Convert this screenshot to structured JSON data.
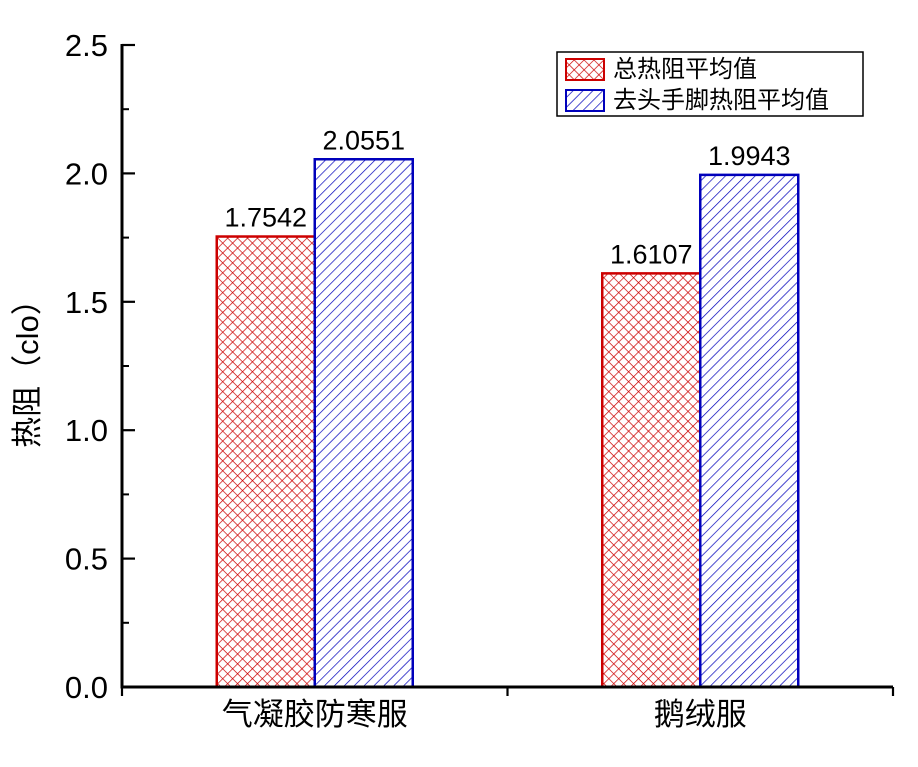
{
  "chart_data": {
    "type": "bar",
    "title": "",
    "xlabel": "",
    "ylabel": "热阻（clo）",
    "ylim": [
      0,
      2.5
    ],
    "yticks": [
      0,
      0.5,
      1,
      1.5,
      2,
      2.5
    ],
    "ytick_labels": [
      "0.0",
      "0.5",
      "1.0",
      "1.5",
      "2.0",
      "2.5"
    ],
    "yminor_step": 0.25,
    "grid": false,
    "background": "#ffffff",
    "axis_color": "#000000",
    "categories": [
      "气凝胶防寒服",
      "鹅绒服"
    ],
    "series": [
      {
        "name": "总热阻平均值",
        "pattern": "crosshatch",
        "color": "#cc0000",
        "values": [
          1.7542,
          1.6107
        ],
        "labels": [
          "1.7542",
          "1.6107"
        ]
      },
      {
        "name": "去头手脚热阻平均值",
        "pattern": "diagonal",
        "color": "#0000bb",
        "values": [
          2.0551,
          1.9943
        ],
        "labels": [
          "2.0551",
          "1.9943"
        ]
      }
    ],
    "legend_position": "top-right"
  }
}
